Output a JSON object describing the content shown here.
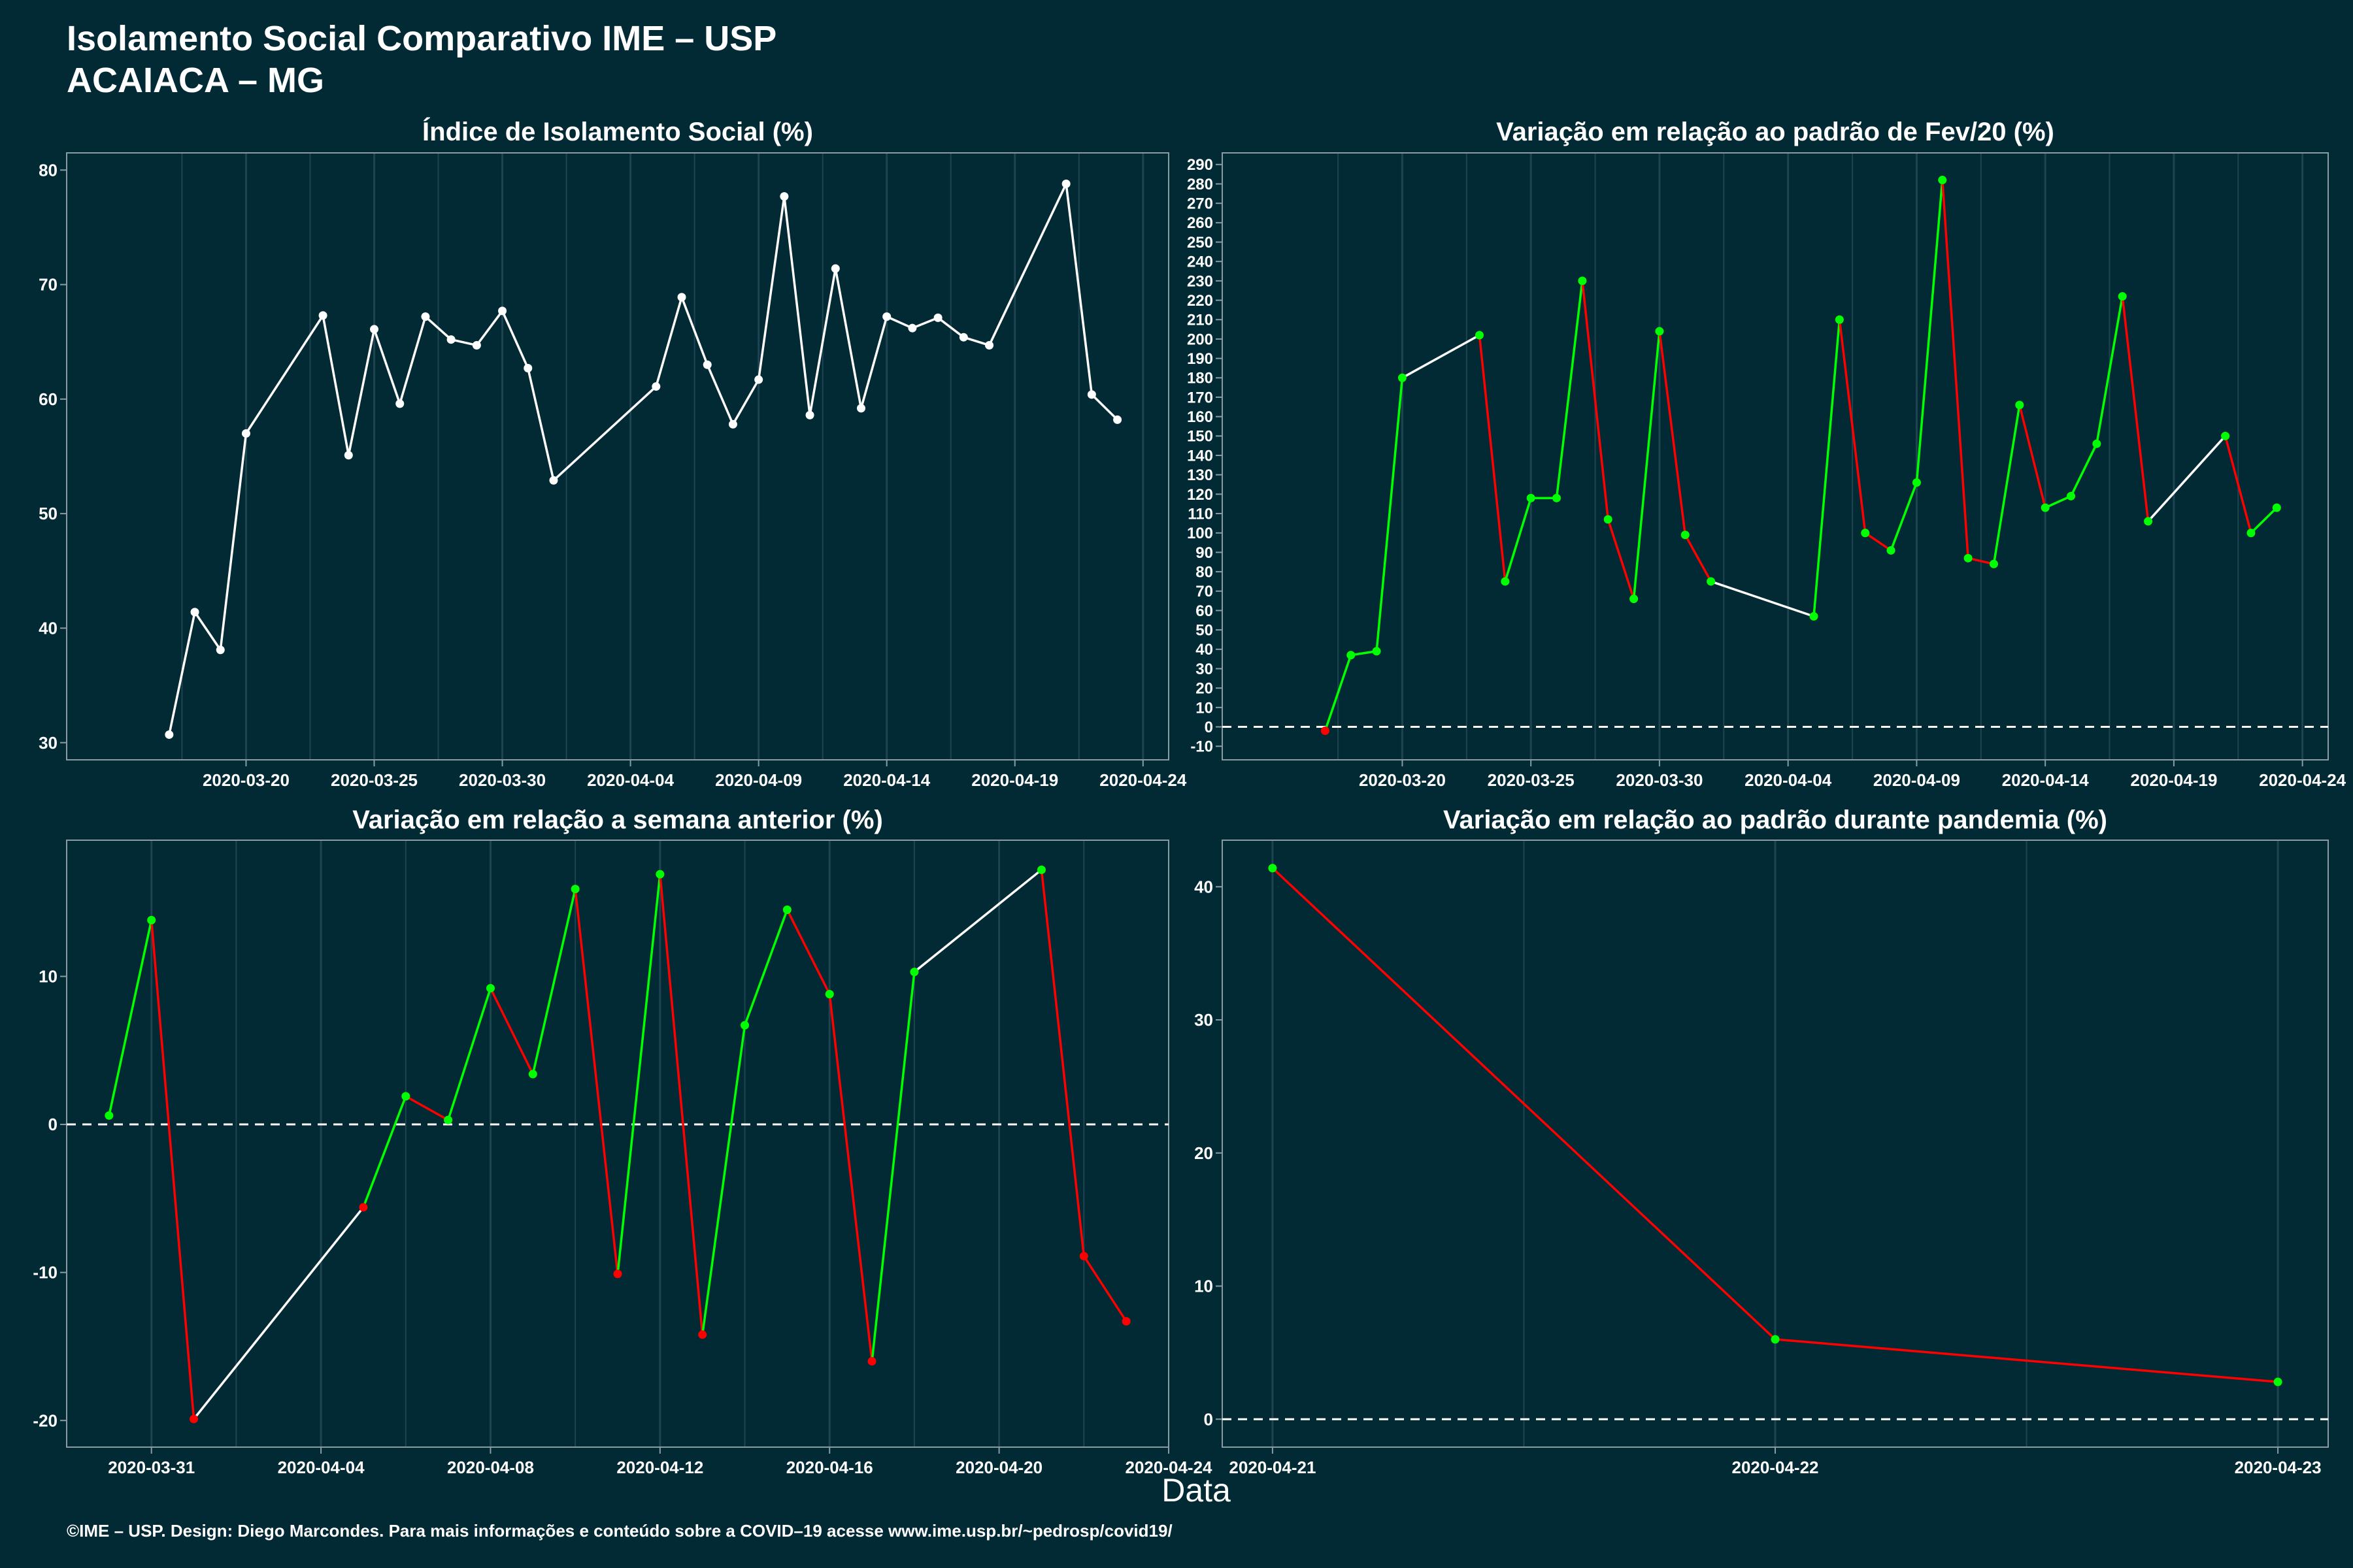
{
  "header": {
    "title": "Isolamento Social Comparativo IME – USP",
    "subtitle": "ACAIACA – MG"
  },
  "xlabel": "Data",
  "footer": "©IME – USP. Design: Diego Marcondes. Para mais informações e conteúdo sobre a COVID–19 acesse www.ime.usp.br/~pedrosp/covid19/",
  "colors": {
    "background": "#022a35",
    "line_white": "#ffffff",
    "positive": "#00ff00",
    "negative": "#ff0000",
    "grid": "#1e4450",
    "frame": "#8a9ca2"
  },
  "chart_data": [
    {
      "type": "line",
      "title": "Índice de Isolamento Social (%)",
      "ylim": [
        28.5,
        81.5
      ],
      "yticks": [
        30,
        40,
        50,
        60,
        70,
        80
      ],
      "xlim": [
        "2020-03-13",
        "2020-04-25"
      ],
      "xticks": [
        "2020-03-20",
        "2020-03-25",
        "2020-03-30",
        "2020-04-04",
        "2020-04-09",
        "2020-04-14",
        "2020-04-19",
        "2020-04-24"
      ],
      "reference_line": null,
      "color_mode": "white",
      "points": [
        {
          "x": "2020-03-17",
          "y": 30.7
        },
        {
          "x": "2020-03-18",
          "y": 41.4
        },
        {
          "x": "2020-03-19",
          "y": 38.1
        },
        {
          "x": "2020-03-20",
          "y": 57.0
        },
        {
          "x": "2020-03-23",
          "y": 67.3
        },
        {
          "x": "2020-03-24",
          "y": 55.1
        },
        {
          "x": "2020-03-25",
          "y": 66.1
        },
        {
          "x": "2020-03-26",
          "y": 59.6
        },
        {
          "x": "2020-03-27",
          "y": 67.2
        },
        {
          "x": "2020-03-28",
          "y": 65.2
        },
        {
          "x": "2020-03-29",
          "y": 64.7
        },
        {
          "x": "2020-03-30",
          "y": 67.7
        },
        {
          "x": "2020-03-31",
          "y": 62.7
        },
        {
          "x": "2020-04-01",
          "y": 52.9
        },
        {
          "x": "2020-04-05",
          "y": 61.1
        },
        {
          "x": "2020-04-06",
          "y": 68.9
        },
        {
          "x": "2020-04-07",
          "y": 63.0
        },
        {
          "x": "2020-04-08",
          "y": 57.8
        },
        {
          "x": "2020-04-09",
          "y": 61.7
        },
        {
          "x": "2020-04-10",
          "y": 77.7
        },
        {
          "x": "2020-04-11",
          "y": 58.6
        },
        {
          "x": "2020-04-12",
          "y": 71.4
        },
        {
          "x": "2020-04-13",
          "y": 59.2
        },
        {
          "x": "2020-04-14",
          "y": 67.2
        },
        {
          "x": "2020-04-15",
          "y": 66.2
        },
        {
          "x": "2020-04-16",
          "y": 67.1
        },
        {
          "x": "2020-04-17",
          "y": 65.4
        },
        {
          "x": "2020-04-18",
          "y": 64.7
        },
        {
          "x": "2020-04-21",
          "y": 78.8
        },
        {
          "x": "2020-04-22",
          "y": 60.4
        },
        {
          "x": "2020-04-23",
          "y": 58.2
        }
      ]
    },
    {
      "type": "line",
      "title": "Variação em relação ao padrão de Fev/20 (%)",
      "ylim": [
        -17,
        296
      ],
      "yticks": [
        -10,
        0,
        10,
        20,
        30,
        40,
        50,
        60,
        70,
        80,
        90,
        100,
        110,
        120,
        130,
        140,
        150,
        160,
        170,
        180,
        190,
        200,
        210,
        220,
        230,
        240,
        250,
        260,
        270,
        280,
        290
      ],
      "xlim": [
        "2020-03-13",
        "2020-04-25"
      ],
      "xticks": [
        "2020-03-20",
        "2020-03-25",
        "2020-03-30",
        "2020-04-04",
        "2020-04-09",
        "2020-04-14",
        "2020-04-19",
        "2020-04-24"
      ],
      "reference_line": 0,
      "color_mode": "sign",
      "points": [
        {
          "x": "2020-03-17",
          "y": -2
        },
        {
          "x": "2020-03-18",
          "y": 37
        },
        {
          "x": "2020-03-19",
          "y": 39
        },
        {
          "x": "2020-03-20",
          "y": 180
        },
        {
          "x": "2020-03-23",
          "y": 202
        },
        {
          "x": "2020-03-24",
          "y": 75
        },
        {
          "x": "2020-03-25",
          "y": 118
        },
        {
          "x": "2020-03-26",
          "y": 118
        },
        {
          "x": "2020-03-27",
          "y": 230
        },
        {
          "x": "2020-03-28",
          "y": 107
        },
        {
          "x": "2020-03-29",
          "y": 66
        },
        {
          "x": "2020-03-30",
          "y": 204
        },
        {
          "x": "2020-03-31",
          "y": 99
        },
        {
          "x": "2020-04-01",
          "y": 75
        },
        {
          "x": "2020-04-05",
          "y": 57
        },
        {
          "x": "2020-04-06",
          "y": 210
        },
        {
          "x": "2020-04-07",
          "y": 100
        },
        {
          "x": "2020-04-08",
          "y": 91
        },
        {
          "x": "2020-04-09",
          "y": 126
        },
        {
          "x": "2020-04-10",
          "y": 282
        },
        {
          "x": "2020-04-11",
          "y": 87
        },
        {
          "x": "2020-04-12",
          "y": 84
        },
        {
          "x": "2020-04-13",
          "y": 166
        },
        {
          "x": "2020-04-14",
          "y": 113
        },
        {
          "x": "2020-04-15",
          "y": 119
        },
        {
          "x": "2020-04-16",
          "y": 146
        },
        {
          "x": "2020-04-17",
          "y": 222
        },
        {
          "x": "2020-04-18",
          "y": 106
        },
        {
          "x": "2020-04-21",
          "y": 150
        },
        {
          "x": "2020-04-22",
          "y": 100
        },
        {
          "x": "2020-04-23",
          "y": 113
        }
      ]
    },
    {
      "type": "line",
      "title": "Variação em relação a semana anterior (%)",
      "ylim": [
        -21.8,
        19.2
      ],
      "yticks": [
        -20,
        -10,
        0,
        10
      ],
      "xlim": [
        "2020-03-29",
        "2020-04-24"
      ],
      "xticks": [
        "2020-03-31",
        "2020-04-04",
        "2020-04-08",
        "2020-04-12",
        "2020-04-16",
        "2020-04-20",
        "2020-04-24"
      ],
      "reference_line": 0,
      "color_mode": "sign",
      "points": [
        {
          "x": "2020-03-30",
          "y": 0.6
        },
        {
          "x": "2020-03-31",
          "y": 13.8
        },
        {
          "x": "2020-04-01",
          "y": -19.9
        },
        {
          "x": "2020-04-05",
          "y": -5.6
        },
        {
          "x": "2020-04-06",
          "y": 1.9
        },
        {
          "x": "2020-04-07",
          "y": 0.3
        },
        {
          "x": "2020-04-08",
          "y": 9.2
        },
        {
          "x": "2020-04-09",
          "y": 3.4
        },
        {
          "x": "2020-04-10",
          "y": 15.9
        },
        {
          "x": "2020-04-11",
          "y": -10.1
        },
        {
          "x": "2020-04-12",
          "y": 16.9
        },
        {
          "x": "2020-04-13",
          "y": -14.2
        },
        {
          "x": "2020-04-14",
          "y": 6.7
        },
        {
          "x": "2020-04-15",
          "y": 14.5
        },
        {
          "x": "2020-04-16",
          "y": 8.8
        },
        {
          "x": "2020-04-17",
          "y": -16.0
        },
        {
          "x": "2020-04-18",
          "y": 10.3
        },
        {
          "x": "2020-04-21",
          "y": 17.2
        },
        {
          "x": "2020-04-22",
          "y": -8.9
        },
        {
          "x": "2020-04-23",
          "y": -13.3
        }
      ]
    },
    {
      "type": "line",
      "title": "Variação em relação ao padrão durante pandemia (%)",
      "ylim": [
        -2.1,
        43.5
      ],
      "yticks": [
        0,
        10,
        20,
        30,
        40
      ],
      "xlim": [
        "2020-04-20 21:36",
        "2020-04-23 02:24"
      ],
      "xticks": [
        "2020-04-21",
        "2020-04-22",
        "2020-04-23"
      ],
      "reference_line": 0,
      "color_mode": "sign",
      "points": [
        {
          "x": "2020-04-21",
          "y": 41.4
        },
        {
          "x": "2020-04-22",
          "y": 6.0
        },
        {
          "x": "2020-04-23",
          "y": 2.8
        }
      ]
    }
  ]
}
